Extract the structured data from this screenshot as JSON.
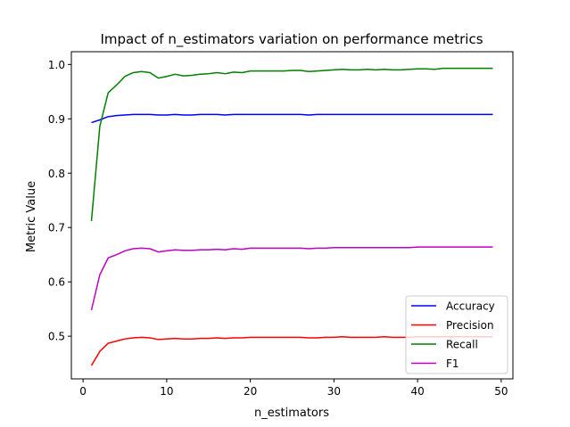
{
  "chart_data": {
    "type": "line",
    "title": "Impact of n_estimators variation on performance metrics",
    "xlabel": "n_estimators",
    "ylabel": "Metric Value",
    "xlim": [
      -1.4,
      51.4
    ],
    "ylim": [
      0.4215,
      1.0235
    ],
    "xticks": [
      0,
      10,
      20,
      30,
      40,
      50
    ],
    "yticks": [
      0.5,
      0.6,
      0.7,
      0.8,
      0.9,
      1.0
    ],
    "xtick_labels": [
      "0",
      "10",
      "20",
      "30",
      "40",
      "50"
    ],
    "ytick_labels": [
      "0.5",
      "0.6",
      "0.7",
      "0.8",
      "0.9",
      "1.0"
    ],
    "legend_position": "lower-right",
    "grid": false,
    "x": [
      1,
      2,
      3,
      4,
      5,
      6,
      7,
      8,
      9,
      10,
      11,
      12,
      13,
      14,
      15,
      16,
      17,
      18,
      19,
      20,
      21,
      22,
      23,
      24,
      25,
      26,
      27,
      28,
      29,
      30,
      31,
      32,
      33,
      34,
      35,
      36,
      37,
      38,
      39,
      40,
      41,
      42,
      43,
      44,
      45,
      46,
      47,
      48,
      49
    ],
    "series": [
      {
        "name": "Accuracy",
        "color": "#0000ff",
        "values": [
          0.893,
          0.898,
          0.904,
          0.906,
          0.907,
          0.908,
          0.908,
          0.908,
          0.907,
          0.907,
          0.908,
          0.907,
          0.907,
          0.908,
          0.908,
          0.908,
          0.907,
          0.908,
          0.908,
          0.908,
          0.908,
          0.908,
          0.908,
          0.908,
          0.908,
          0.908,
          0.907,
          0.908,
          0.908,
          0.908,
          0.908,
          0.908,
          0.908,
          0.908,
          0.908,
          0.908,
          0.908,
          0.908,
          0.908,
          0.908,
          0.908,
          0.908,
          0.908,
          0.908,
          0.908,
          0.908,
          0.908,
          0.908,
          0.908
        ]
      },
      {
        "name": "Precision",
        "color": "#ff0000",
        "values": [
          0.446,
          0.472,
          0.487,
          0.491,
          0.495,
          0.497,
          0.498,
          0.497,
          0.494,
          0.495,
          0.496,
          0.495,
          0.495,
          0.496,
          0.496,
          0.497,
          0.496,
          0.497,
          0.497,
          0.498,
          0.498,
          0.498,
          0.498,
          0.498,
          0.498,
          0.498,
          0.497,
          0.497,
          0.498,
          0.498,
          0.499,
          0.498,
          0.498,
          0.498,
          0.498,
          0.499,
          0.498,
          0.498,
          0.498,
          0.499,
          0.499,
          0.499,
          0.499,
          0.499,
          0.499,
          0.499,
          0.499,
          0.499,
          0.499
        ]
      },
      {
        "name": "Recall",
        "color": "#008000",
        "values": [
          0.712,
          0.886,
          0.948,
          0.962,
          0.978,
          0.985,
          0.987,
          0.985,
          0.975,
          0.978,
          0.982,
          0.979,
          0.98,
          0.982,
          0.983,
          0.985,
          0.983,
          0.986,
          0.985,
          0.988,
          0.988,
          0.988,
          0.988,
          0.988,
          0.989,
          0.989,
          0.987,
          0.988,
          0.989,
          0.99,
          0.991,
          0.99,
          0.99,
          0.991,
          0.99,
          0.991,
          0.99,
          0.99,
          0.991,
          0.992,
          0.992,
          0.991,
          0.993,
          0.993,
          0.993,
          0.993,
          0.993,
          0.993,
          0.993
        ]
      },
      {
        "name": "F1",
        "color": "#bf00bf",
        "values": [
          0.548,
          0.613,
          0.644,
          0.65,
          0.657,
          0.661,
          0.662,
          0.661,
          0.655,
          0.657,
          0.659,
          0.658,
          0.658,
          0.659,
          0.659,
          0.66,
          0.659,
          0.661,
          0.66,
          0.662,
          0.662,
          0.662,
          0.662,
          0.662,
          0.662,
          0.662,
          0.661,
          0.662,
          0.662,
          0.663,
          0.663,
          0.663,
          0.663,
          0.663,
          0.663,
          0.663,
          0.663,
          0.663,
          0.663,
          0.664,
          0.664,
          0.664,
          0.664,
          0.664,
          0.664,
          0.664,
          0.664,
          0.664,
          0.664
        ]
      }
    ]
  }
}
